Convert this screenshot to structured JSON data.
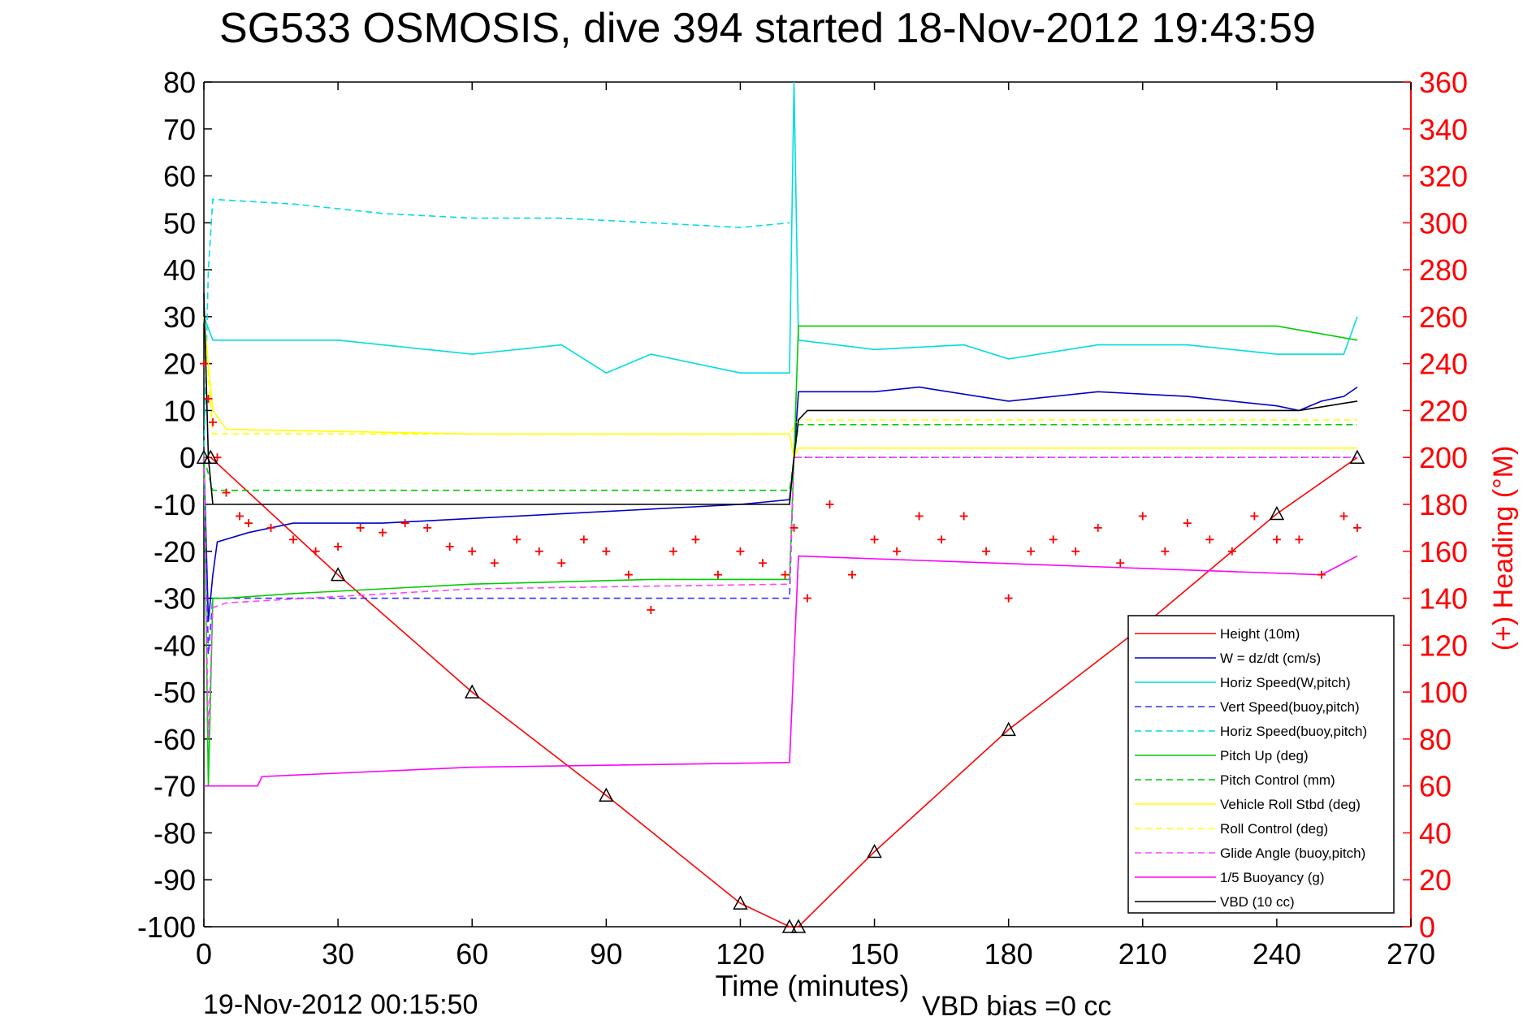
{
  "chart_data": {
    "type": "line",
    "title": "SG533 OSMOSIS, dive 394 started 18-Nov-2012 19:43:59",
    "xlabel": "Time (minutes)",
    "ylabel": "",
    "ylabel_right": "(+) Heading (°M)",
    "footer_left": "19-Nov-2012 00:15:50",
    "footer_right": "VBD bias =0 cc",
    "xlim": [
      0,
      270
    ],
    "ylim": [
      -100,
      80
    ],
    "ylim_right": [
      0,
      360
    ],
    "x_ticks": [
      0,
      30,
      60,
      90,
      120,
      150,
      180,
      210,
      240,
      270
    ],
    "y_ticks": [
      80,
      70,
      60,
      50,
      40,
      30,
      20,
      10,
      0,
      -10,
      -20,
      -30,
      -40,
      -50,
      -60,
      -70,
      -80,
      -90,
      -100
    ],
    "y_ticks_right": [
      360,
      340,
      320,
      300,
      280,
      260,
      240,
      220,
      200,
      180,
      160,
      140,
      120,
      100,
      80,
      60,
      40,
      20,
      0
    ],
    "grid": true,
    "legend_position": "lower-right",
    "series": [
      {
        "name": "Height (10m)",
        "color": "#ff0000",
        "style": "solid",
        "x": [
          0,
          1.5,
          30,
          60,
          90,
          120,
          131,
          133,
          150,
          180,
          210,
          240,
          258
        ],
        "y": [
          0,
          0,
          -25,
          -50,
          -72,
          -95,
          -100,
          -100,
          -84,
          -58,
          -36,
          -12,
          0
        ]
      },
      {
        "name": "W = dz/dt (cm/s)",
        "color": "#0000cc",
        "style": "solid",
        "x": [
          0,
          1,
          2,
          3,
          10,
          20,
          40,
          60,
          80,
          100,
          120,
          131,
          132,
          133,
          150,
          160,
          180,
          200,
          220,
          240,
          245,
          250,
          255,
          258
        ],
        "y": [
          0,
          -35,
          -25,
          -18,
          -16,
          -14,
          -14,
          -13,
          -12,
          -11,
          -10,
          -9,
          0,
          14,
          14,
          15,
          12,
          14,
          13,
          11,
          10,
          12,
          13,
          15
        ]
      },
      {
        "name": "Horiz Speed(W,pitch)",
        "color": "#00dddd",
        "style": "solid",
        "x": [
          0,
          2,
          10,
          30,
          60,
          80,
          90,
          100,
          120,
          131,
          132,
          133,
          150,
          170,
          180,
          200,
          220,
          240,
          255,
          258
        ],
        "y": [
          30,
          25,
          25,
          25,
          22,
          24,
          18,
          22,
          18,
          18,
          80,
          25,
          23,
          24,
          21,
          24,
          24,
          22,
          22,
          30
        ]
      },
      {
        "name": "Vert Speed(buoy,pitch)",
        "color": "#3333ff",
        "style": "dashed",
        "x": [
          0,
          1,
          2,
          3,
          131,
          132,
          133,
          258
        ],
        "y": [
          0,
          -42,
          -30,
          -30,
          -30,
          0,
          0,
          0
        ]
      },
      {
        "name": "Horiz Speed(buoy,pitch)",
        "color": "#00dddd",
        "style": "dashed",
        "x": [
          0,
          1,
          2,
          20,
          40,
          60,
          80,
          100,
          120,
          131
        ],
        "y": [
          0,
          40,
          55,
          54,
          52,
          51,
          51,
          50,
          49,
          50
        ]
      },
      {
        "name": "Pitch Up (deg)",
        "color": "#00cc00",
        "style": "solid",
        "x": [
          0,
          1,
          2,
          5,
          20,
          60,
          100,
          131,
          132,
          133,
          150,
          200,
          240,
          258
        ],
        "y": [
          0,
          -70,
          -30,
          -30,
          -29,
          -27,
          -26,
          -26,
          0,
          28,
          28,
          28,
          28,
          25
        ]
      },
      {
        "name": "Pitch Control (mm)",
        "color": "#00cc00",
        "style": "dashed",
        "x": [
          0,
          2,
          131,
          132,
          133,
          258
        ],
        "y": [
          0,
          -7,
          -7,
          0,
          7,
          7
        ]
      },
      {
        "name": "Vehicle Roll Stbd (deg)",
        "color": "#ffff00",
        "style": "solid",
        "x": [
          0,
          2,
          5,
          60,
          131,
          132,
          133,
          258
        ],
        "y": [
          30,
          10,
          6,
          5,
          5,
          0,
          2,
          2
        ]
      },
      {
        "name": "Roll Control (deg)",
        "color": "#ffff00",
        "style": "dashed",
        "x": [
          0,
          2,
          131,
          133,
          258
        ],
        "y": [
          30,
          5,
          5,
          8,
          8
        ]
      },
      {
        "name": "Glide Angle (buoy,pitch)",
        "color": "#ff44ff",
        "style": "dashed",
        "x": [
          0,
          1,
          2,
          5,
          60,
          131,
          132,
          133,
          258
        ],
        "y": [
          0,
          -60,
          -32,
          -31,
          -28,
          -27,
          0,
          0,
          0
        ]
      },
      {
        "name": "1/5 Buoyancy (g)",
        "color": "#ff00ff",
        "style": "solid",
        "x": [
          0,
          2,
          12,
          13,
          60,
          131,
          133,
          250,
          258
        ],
        "y": [
          -70,
          -70,
          -70,
          -68,
          -66,
          -65,
          -21,
          -25,
          -21
        ]
      },
      {
        "name": "VBD (10 cc)",
        "color": "#000000",
        "style": "solid",
        "x": [
          0,
          1,
          2,
          131,
          132,
          133,
          135,
          150,
          240,
          245,
          258
        ],
        "y": [
          35,
          0,
          -10,
          -10,
          0,
          8,
          10,
          10,
          10,
          10,
          12
        ]
      }
    ],
    "heading_series": {
      "name": "Heading",
      "color": "#ff0000",
      "marker": "+",
      "axis": "right",
      "x": [
        0,
        1,
        2,
        3,
        5,
        8,
        10,
        15,
        20,
        25,
        30,
        35,
        40,
        45,
        50,
        55,
        60,
        65,
        70,
        75,
        80,
        85,
        90,
        95,
        100,
        105,
        110,
        115,
        120,
        125,
        130,
        132,
        135,
        140,
        145,
        150,
        155,
        160,
        165,
        170,
        175,
        180,
        185,
        190,
        195,
        200,
        205,
        210,
        215,
        220,
        225,
        230,
        235,
        240,
        245,
        250,
        255,
        258
      ],
      "y": [
        240,
        225,
        215,
        200,
        185,
        175,
        172,
        170,
        165,
        160,
        162,
        170,
        168,
        172,
        170,
        162,
        160,
        155,
        165,
        160,
        155,
        165,
        160,
        150,
        135,
        160,
        165,
        150,
        160,
        155,
        150,
        170,
        140,
        180,
        150,
        165,
        160,
        175,
        165,
        175,
        160,
        140,
        160,
        165,
        160,
        170,
        155,
        175,
        160,
        172,
        165,
        160,
        175,
        165,
        165,
        150,
        175,
        170
      ]
    }
  }
}
